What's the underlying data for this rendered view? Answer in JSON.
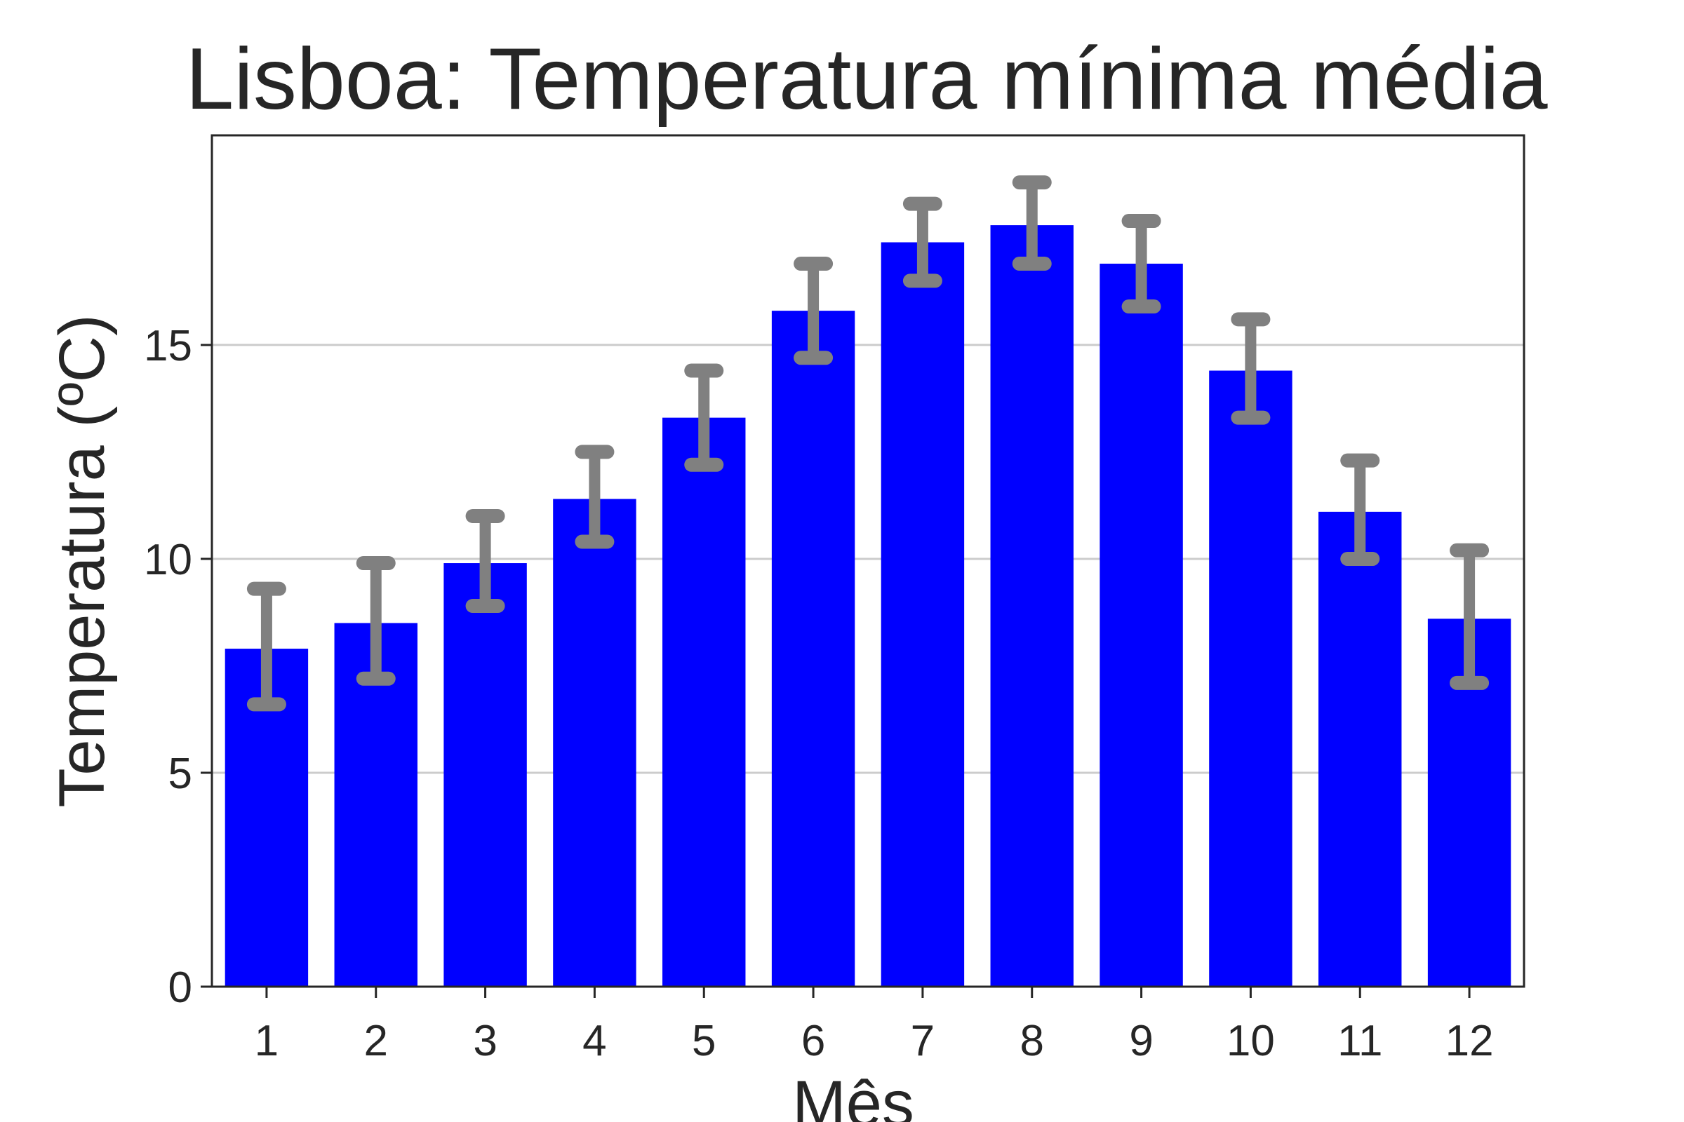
{
  "chart_data": {
    "type": "bar",
    "title": "Lisboa: Temperatura mínima média",
    "xlabel": "Mês",
    "ylabel": "Temperatura (ºC)",
    "categories": [
      "1",
      "2",
      "3",
      "4",
      "5",
      "6",
      "7",
      "8",
      "9",
      "10",
      "11",
      "12"
    ],
    "values": [
      7.9,
      8.5,
      9.9,
      11.4,
      13.3,
      15.8,
      17.4,
      17.8,
      16.9,
      14.4,
      11.1,
      8.6
    ],
    "error_low": [
      6.6,
      7.2,
      8.9,
      10.4,
      12.2,
      14.7,
      16.5,
      16.9,
      15.9,
      13.3,
      10.0,
      7.1
    ],
    "error_high": [
      9.3,
      9.9,
      11.0,
      12.5,
      14.4,
      16.9,
      18.3,
      18.8,
      17.9,
      15.6,
      12.3,
      10.2
    ],
    "yticks": [
      0,
      5,
      10,
      15
    ],
    "ylim": [
      0,
      19.9
    ],
    "grid": "horizontal",
    "colors": {
      "bar": "#0000ff",
      "error_bar": "#808080",
      "grid": "#cccccc",
      "axis": "#262626"
    }
  }
}
